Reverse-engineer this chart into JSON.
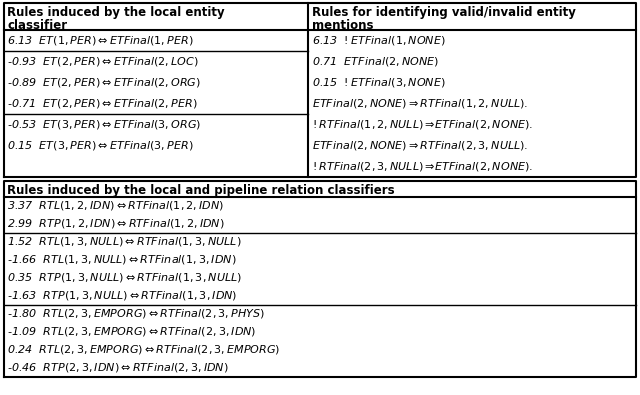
{
  "top_left_header_line1": "Rules induced by the local entity",
  "top_left_header_line2": "classifier",
  "top_right_header_line1": "Rules for identifying valid/invalid entity",
  "top_right_header_line2": "mentions",
  "bottom_header": "Rules induced by the local and pipeline relation classifiers",
  "top_left_rows": [
    {
      "weight": "6.13",
      "rule": "$ET(1,PER) \\Leftrightarrow ETFinal(1,PER)$",
      "group": 0
    },
    {
      "weight": "-0.93",
      "rule": "$ET(2,PER) \\Leftrightarrow ETFinal(2,LOC)$",
      "group": 1
    },
    {
      "weight": "-0.89",
      "rule": "$ET(2,PER) \\Leftrightarrow ETFinal(2,ORG)$",
      "group": 1
    },
    {
      "weight": "-0.71",
      "rule": "$ET(2,PER) \\Leftrightarrow ETFinal(2,PER)$",
      "group": 1
    },
    {
      "weight": "-0.53",
      "rule": "$ET(3,PER) \\Leftrightarrow ETFinal(3,ORG)$",
      "group": 2
    },
    {
      "weight": "0.15",
      "rule": "$ET(3,PER) \\Leftrightarrow ETFinal(3,PER)$",
      "group": 2
    }
  ],
  "top_right_rows": [
    "6.13  $!ETFinal(1,NONE)$",
    "0.71  $ETFinal(2,NONE)$",
    "0.15  $!ETFinal(3,NONE)$",
    "$ETFinal(2,NONE) \\Rightarrow RTFinal(1,2,NULL).$",
    "$!RTFinal(1,2,NULL) \\Rightarrow\\!ETFinal(2,NONE).$",
    "$ETFinal(2,NONE) \\Rightarrow RTFinal(2,3,NULL).$",
    "$!RTFinal(2,3,NULL) \\Rightarrow\\!ETFinal(2,NONE).$"
  ],
  "bottom_rows": [
    {
      "weight": "3.37",
      "rule": "$RTL(1,2,IDN) \\Leftrightarrow RTFinal(1,2,IDN)$",
      "group": 0
    },
    {
      "weight": "2.99",
      "rule": "$RTP(1,2,IDN) \\Leftrightarrow RTFinal(1,2,IDN)$",
      "group": 0
    },
    {
      "weight": "1.52",
      "rule": "$RTL(1,3,NULL) \\Leftrightarrow RTFinal(1,3,NULL)$",
      "group": 1
    },
    {
      "weight": "-1.66",
      "rule": "$RTL(1,3,NULL) \\Leftrightarrow RTFinal(1,3,IDN)$",
      "group": 1
    },
    {
      "weight": "0.35",
      "rule": "$RTP(1,3,NULL) \\Leftrightarrow RTFinal(1,3,NULL)$",
      "group": 1
    },
    {
      "weight": "-1.63",
      "rule": "$RTP(1,3,NULL) \\Leftrightarrow RTFinal(1,3,IDN)$",
      "group": 1
    },
    {
      "weight": "-1.80",
      "rule": "$RTL(2,3,EMPORG) \\Leftrightarrow RTFinal(2,3,PHYS)$",
      "group": 2
    },
    {
      "weight": "-1.09",
      "rule": "$RTL(2,3,EMPORG) \\Leftrightarrow RTFinal(2,3,IDN)$",
      "group": 2
    },
    {
      "weight": "0.24",
      "rule": "$RTL(2,3,EMPORG) \\Leftrightarrow RTFinal(2,3,EMPORG)$",
      "group": 2
    },
    {
      "weight": "-0.46",
      "rule": "$RTP(2,3,IDN) \\Leftrightarrow RTFinal(2,3,IDN)$",
      "group": 2
    }
  ],
  "bg_color": "#ffffff",
  "line_color": "#000000",
  "text_color": "#000000"
}
